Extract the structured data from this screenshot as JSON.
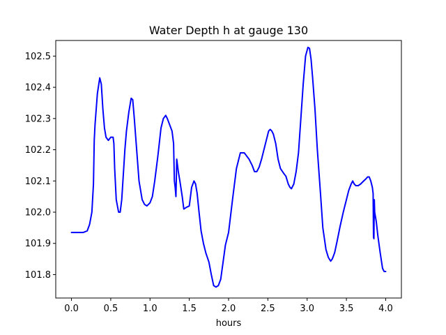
{
  "chart_data": {
    "type": "line",
    "title": "Water Depth h at gauge 130",
    "xlabel": "hours",
    "ylabel": "",
    "xlim": [
      -0.2,
      4.2
    ],
    "ylim": [
      101.725,
      102.55
    ],
    "x_ticks": [
      0.0,
      0.5,
      1.0,
      1.5,
      2.0,
      2.5,
      3.0,
      3.5,
      4.0
    ],
    "x_tick_labels": [
      "0.0",
      "0.5",
      "1.0",
      "1.5",
      "2.0",
      "2.5",
      "3.0",
      "3.5",
      "4.0"
    ],
    "y_ticks": [
      101.8,
      101.9,
      102.0,
      102.1,
      102.2,
      102.3,
      102.4,
      102.5
    ],
    "y_tick_labels": [
      "101.8",
      "101.9",
      "102.0",
      "102.1",
      "102.2",
      "102.3",
      "102.4",
      "102.5"
    ],
    "grid": false,
    "series": [
      {
        "color": "#0000ff",
        "x": [
          0.0,
          0.1,
          0.15,
          0.2,
          0.23,
          0.26,
          0.28,
          0.29,
          0.3,
          0.33,
          0.36,
          0.38,
          0.4,
          0.42,
          0.44,
          0.47,
          0.5,
          0.53,
          0.54,
          0.55,
          0.57,
          0.6,
          0.62,
          0.64,
          0.66,
          0.68,
          0.7,
          0.73,
          0.76,
          0.78,
          0.8,
          0.83,
          0.86,
          0.9,
          0.93,
          0.96,
          1.0,
          1.03,
          1.06,
          1.1,
          1.14,
          1.17,
          1.2,
          1.22,
          1.25,
          1.28,
          1.3,
          1.31,
          1.32,
          1.33,
          1.34,
          1.36,
          1.38,
          1.41,
          1.43,
          1.46,
          1.5,
          1.53,
          1.56,
          1.58,
          1.6,
          1.62,
          1.65,
          1.68,
          1.71,
          1.75,
          1.78,
          1.81,
          1.84,
          1.87,
          1.9,
          1.93,
          1.96,
          2.0,
          2.05,
          2.1,
          2.15,
          2.2,
          2.23,
          2.26,
          2.3,
          2.33,
          2.36,
          2.39,
          2.42,
          2.45,
          2.48,
          2.51,
          2.53,
          2.55,
          2.57,
          2.6,
          2.63,
          2.66,
          2.7,
          2.73,
          2.76,
          2.78,
          2.8,
          2.83,
          2.86,
          2.89,
          2.92,
          2.95,
          2.98,
          3.01,
          3.03,
          3.05,
          3.07,
          3.1,
          3.13,
          3.17,
          3.2,
          3.24,
          3.27,
          3.3,
          3.32,
          3.35,
          3.38,
          3.42,
          3.46,
          3.5,
          3.53,
          3.56,
          3.58,
          3.6,
          3.62,
          3.63,
          3.65,
          3.68,
          3.72,
          3.75,
          3.77,
          3.79,
          3.81,
          3.83,
          3.84,
          3.845,
          3.85,
          3.855,
          3.86,
          3.88,
          3.9,
          3.93,
          3.96,
          3.98,
          4.0
        ],
        "y": [
          101.935,
          101.935,
          101.935,
          101.94,
          101.96,
          102.0,
          102.09,
          102.23,
          102.28,
          102.38,
          102.43,
          102.41,
          102.33,
          102.27,
          102.24,
          102.23,
          102.24,
          102.24,
          102.22,
          102.14,
          102.04,
          102.0,
          102.0,
          102.04,
          102.12,
          102.2,
          102.26,
          102.32,
          102.365,
          102.36,
          102.3,
          102.2,
          102.1,
          102.04,
          102.025,
          102.02,
          102.03,
          102.05,
          102.1,
          102.18,
          102.27,
          102.3,
          102.31,
          102.3,
          102.28,
          102.26,
          102.22,
          102.1,
          102.08,
          102.05,
          102.17,
          102.13,
          102.1,
          102.05,
          102.01,
          102.015,
          102.02,
          102.08,
          102.1,
          102.09,
          102.06,
          102.01,
          101.94,
          101.9,
          101.87,
          101.84,
          101.8,
          101.765,
          101.76,
          101.765,
          101.785,
          101.84,
          101.895,
          101.935,
          102.04,
          102.14,
          102.19,
          102.19,
          102.18,
          102.17,
          102.15,
          102.13,
          102.13,
          102.145,
          102.17,
          102.2,
          102.23,
          102.26,
          102.265,
          102.26,
          102.25,
          102.22,
          102.17,
          102.14,
          102.125,
          102.115,
          102.09,
          102.08,
          102.075,
          102.09,
          102.13,
          102.19,
          102.3,
          102.41,
          102.5,
          102.528,
          102.525,
          102.49,
          102.43,
          102.33,
          102.2,
          102.06,
          101.95,
          101.88,
          101.855,
          101.843,
          101.85,
          101.87,
          101.905,
          101.955,
          102.0,
          102.04,
          102.07,
          102.09,
          102.1,
          102.09,
          102.085,
          102.085,
          102.085,
          102.09,
          102.1,
          102.107,
          102.113,
          102.113,
          102.1,
          102.08,
          102.06,
          101.92,
          101.915,
          102.04,
          102.0,
          101.97,
          101.925,
          101.87,
          101.82,
          101.81,
          101.81
        ]
      }
    ]
  }
}
